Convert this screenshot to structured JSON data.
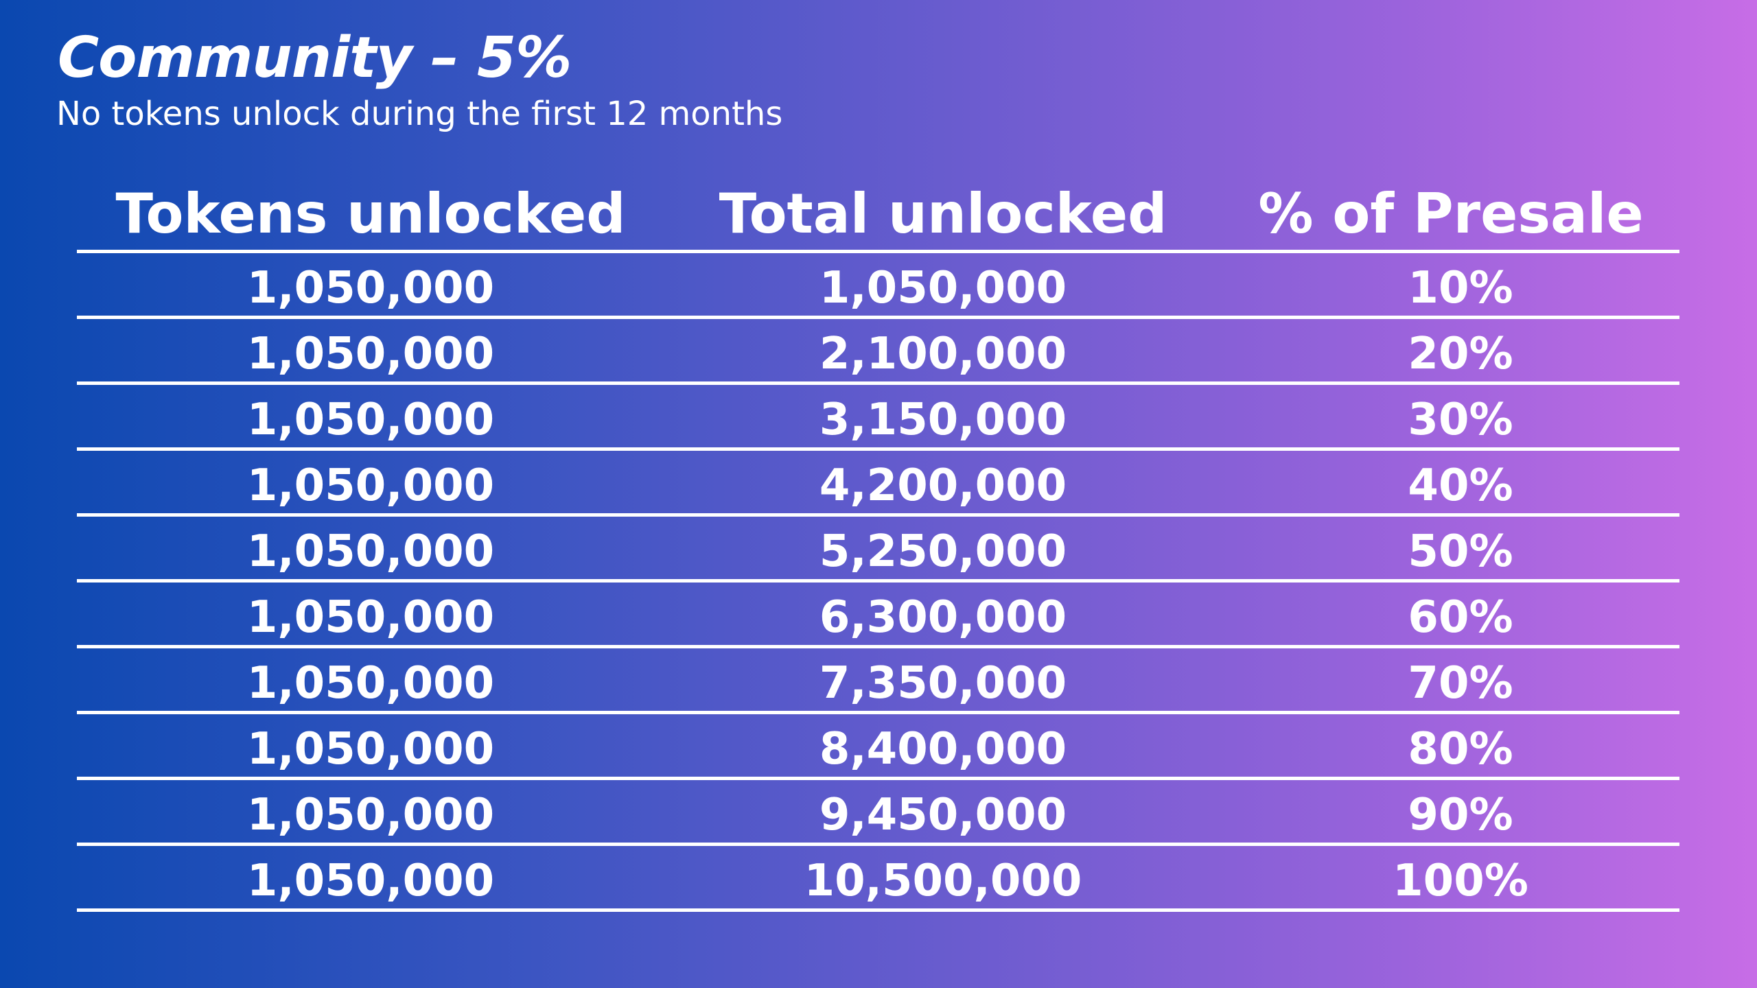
{
  "slide": {
    "title": "Community – 5%",
    "subtitle": "No tokens unlock during the first 12 months"
  },
  "table": {
    "headers": [
      "Tokens unlocked",
      "Total unlocked",
      "% of Presale"
    ],
    "rows": [
      [
        "1,050,000",
        "1,050,000",
        "10%"
      ],
      [
        "1,050,000",
        "2,100,000",
        "20%"
      ],
      [
        "1,050,000",
        "3,150,000",
        "30%"
      ],
      [
        "1,050,000",
        "4,200,000",
        "40%"
      ],
      [
        "1,050,000",
        "5,250,000",
        "50%"
      ],
      [
        "1,050,000",
        "6,300,000",
        "60%"
      ],
      [
        "1,050,000",
        "7,350,000",
        "70%"
      ],
      [
        "1,050,000",
        "8,400,000",
        "80%"
      ],
      [
        "1,050,000",
        "9,450,000",
        "90%"
      ],
      [
        "1,050,000",
        "10,500,000",
        "100%"
      ]
    ]
  },
  "colors": {
    "gradient_start": "#0a48b0",
    "gradient_end": "#c76de6",
    "text": "#ffffff"
  }
}
